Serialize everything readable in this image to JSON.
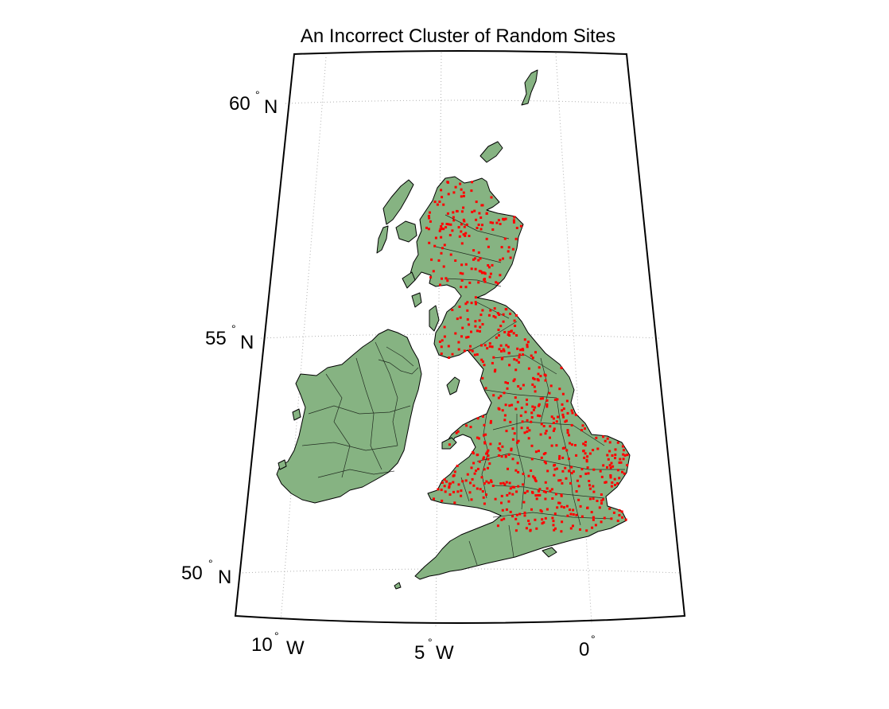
{
  "title": "An Incorrect Cluster of Random Sites",
  "colors": {
    "land": "#86b382",
    "sites": "#ff0000",
    "coastline": "#000000",
    "grid": "#b0b0b0",
    "background": "#ffffff"
  },
  "projection": "conic",
  "grid": true,
  "latitude_labels": [
    {
      "value": "60",
      "hemisphere": "N"
    },
    {
      "value": "55",
      "hemisphere": "N"
    },
    {
      "value": "50",
      "hemisphere": "N"
    }
  ],
  "longitude_labels": [
    {
      "value": "10",
      "hemisphere": "W"
    },
    {
      "value": "5",
      "hemisphere": "W"
    },
    {
      "value": "0",
      "hemisphere": ""
    }
  ],
  "degree_symbol": "°",
  "sites": {
    "count": 720,
    "marker": "red dot",
    "lon_range": [
      -5.5,
      1.8
    ],
    "lat_range": [
      50.3,
      58.6
    ]
  }
}
